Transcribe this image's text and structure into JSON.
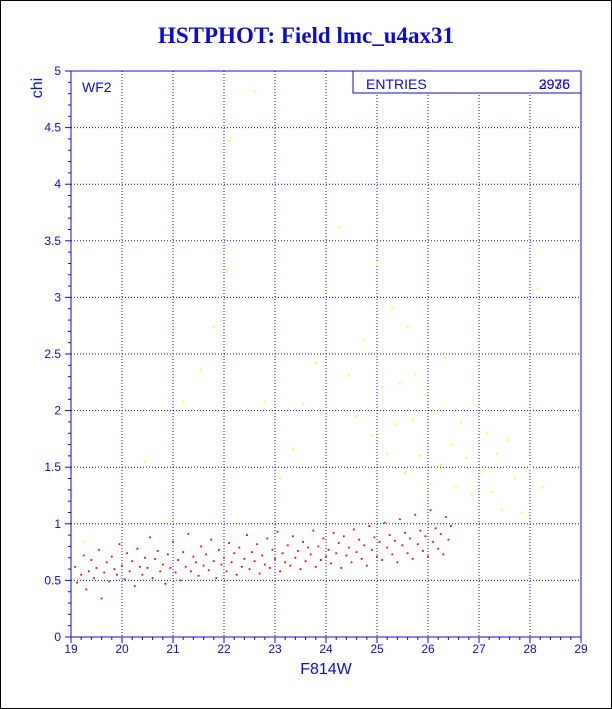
{
  "page": {
    "title": "HSTPHOT: Field lmc_u4ax31"
  },
  "colors": {
    "axis": "#0b0bd6",
    "title": "#0b0bd6",
    "grid": "#0b0bd6",
    "point_primary": "#ff0000",
    "point_secondary": "#ffff00"
  },
  "chart_data": {
    "type": "scatter",
    "title": "HSTPHOT: Field lmc_u4ax31",
    "subtitle": "",
    "xlabel": "F814W",
    "ylabel": "chi",
    "xlim": [
      19,
      29
    ],
    "ylim": [
      0,
      5
    ],
    "x_ticks": [
      "19",
      "20",
      "21",
      "22",
      "23",
      "24",
      "25",
      "26",
      "27",
      "28",
      "29"
    ],
    "y_ticks": [
      "0",
      "0.5",
      "1",
      "1.5",
      "2",
      "2.5",
      "3",
      "3.5",
      "4",
      "4.5",
      "5"
    ],
    "grid": true,
    "corner_label": "WF2",
    "stats_box": {
      "label": "ENTRIES",
      "value": "2976",
      "overlaid_value": "3935"
    },
    "series": [
      {
        "color": "#ff0000",
        "points": [
          [
            19.08,
            0.62
          ],
          [
            19.12,
            0.48
          ],
          [
            19.2,
            0.55
          ],
          [
            19.25,
            0.72
          ],
          [
            19.3,
            0.42
          ],
          [
            19.35,
            0.58
          ],
          [
            19.4,
            0.68
          ],
          [
            19.45,
            0.52
          ],
          [
            19.5,
            0.61
          ],
          [
            19.55,
            0.77
          ],
          [
            19.6,
            0.34
          ],
          [
            19.65,
            0.57
          ],
          [
            19.7,
            0.66
          ],
          [
            19.75,
            0.49
          ],
          [
            19.8,
            0.71
          ],
          [
            19.85,
            0.6
          ],
          [
            19.9,
            0.55
          ],
          [
            19.95,
            0.82
          ],
          [
            20.0,
            0.63
          ],
          [
            20.05,
            0.51
          ],
          [
            20.1,
            0.74
          ],
          [
            20.15,
            0.58
          ],
          [
            20.2,
            0.67
          ],
          [
            20.25,
            0.45
          ],
          [
            20.3,
            0.78
          ],
          [
            20.35,
            0.62
          ],
          [
            20.4,
            0.55
          ],
          [
            20.45,
            0.7
          ],
          [
            20.5,
            0.61
          ],
          [
            20.55,
            0.88
          ],
          [
            20.6,
            0.52
          ],
          [
            20.65,
            0.69
          ],
          [
            20.7,
            0.76
          ],
          [
            20.75,
            0.58
          ],
          [
            20.8,
            0.64
          ],
          [
            20.85,
            0.47
          ],
          [
            20.9,
            0.73
          ],
          [
            20.95,
            0.61
          ],
          [
            21.0,
            0.84
          ],
          [
            21.05,
            0.57
          ],
          [
            21.1,
            0.68
          ],
          [
            21.15,
            0.5
          ],
          [
            21.2,
            0.75
          ],
          [
            21.25,
            0.62
          ],
          [
            21.3,
            0.91
          ],
          [
            21.35,
            0.58
          ],
          [
            21.4,
            0.71
          ],
          [
            21.45,
            0.66
          ],
          [
            21.5,
            0.54
          ],
          [
            21.55,
            0.8
          ],
          [
            21.6,
            0.63
          ],
          [
            21.65,
            0.73
          ],
          [
            21.7,
            0.59
          ],
          [
            21.75,
            0.86
          ],
          [
            21.8,
            0.67
          ],
          [
            21.85,
            0.52
          ],
          [
            21.9,
            0.77
          ],
          [
            21.95,
            0.64
          ],
          [
            22.0,
            0.7
          ],
          [
            22.05,
            0.58
          ],
          [
            22.1,
            0.83
          ],
          [
            22.15,
            0.66
          ],
          [
            22.2,
            0.74
          ],
          [
            22.25,
            0.55
          ],
          [
            22.3,
            0.79
          ],
          [
            22.35,
            0.62
          ],
          [
            22.4,
            0.69
          ],
          [
            22.45,
            0.9
          ],
          [
            22.5,
            0.6
          ],
          [
            22.55,
            0.75
          ],
          [
            22.6,
            0.67
          ],
          [
            22.65,
            0.82
          ],
          [
            22.7,
            0.56
          ],
          [
            22.75,
            0.72
          ],
          [
            22.8,
            0.64
          ],
          [
            22.85,
            0.87
          ],
          [
            22.9,
            0.61
          ],
          [
            22.95,
            0.77
          ],
          [
            23.0,
            0.69
          ],
          [
            23.05,
            0.93
          ],
          [
            23.1,
            0.58
          ],
          [
            23.15,
            0.74
          ],
          [
            23.2,
            0.66
          ],
          [
            23.25,
            0.81
          ],
          [
            23.3,
            0.63
          ],
          [
            23.35,
            0.89
          ],
          [
            23.4,
            0.7
          ],
          [
            23.45,
            0.76
          ],
          [
            23.5,
            0.6
          ],
          [
            23.55,
            0.84
          ],
          [
            23.6,
            0.67
          ],
          [
            23.65,
            0.79
          ],
          [
            23.7,
            0.73
          ],
          [
            23.75,
            0.94
          ],
          [
            23.8,
            0.62
          ],
          [
            23.85,
            0.8
          ],
          [
            23.9,
            0.68
          ],
          [
            23.95,
            0.87
          ],
          [
            24.0,
            0.71
          ],
          [
            24.05,
            0.77
          ],
          [
            24.1,
            0.65
          ],
          [
            24.15,
            0.92
          ],
          [
            24.2,
            0.74
          ],
          [
            24.25,
            0.83
          ],
          [
            24.3,
            0.61
          ],
          [
            24.35,
            0.89
          ],
          [
            24.4,
            0.72
          ],
          [
            24.45,
            0.79
          ],
          [
            24.5,
            0.66
          ],
          [
            24.55,
            0.95
          ],
          [
            24.6,
            0.75
          ],
          [
            24.65,
            0.86
          ],
          [
            24.7,
            0.69
          ],
          [
            24.75,
            0.81
          ],
          [
            24.8,
            0.63
          ],
          [
            24.85,
            0.98
          ],
          [
            24.9,
            0.77
          ],
          [
            24.95,
            0.88
          ],
          [
            25.0,
            0.71
          ],
          [
            25.05,
            0.84
          ],
          [
            25.1,
            0.68
          ],
          [
            25.15,
            1.01
          ],
          [
            25.2,
            0.79
          ],
          [
            25.25,
            0.9
          ],
          [
            25.3,
            0.73
          ],
          [
            25.35,
            0.85
          ],
          [
            25.4,
            0.66
          ],
          [
            25.45,
            1.04
          ],
          [
            25.5,
            0.81
          ],
          [
            25.55,
            0.92
          ],
          [
            25.6,
            0.74
          ],
          [
            25.65,
            0.87
          ],
          [
            25.7,
            0.69
          ],
          [
            25.75,
            1.08
          ],
          [
            25.8,
            0.82
          ],
          [
            25.85,
            0.94
          ],
          [
            25.9,
            0.76
          ],
          [
            25.95,
            0.89
          ],
          [
            26.0,
            0.71
          ],
          [
            26.05,
            1.12
          ],
          [
            26.1,
            0.84
          ],
          [
            26.15,
            0.96
          ],
          [
            26.2,
            0.78
          ],
          [
            26.25,
            0.91
          ],
          [
            26.3,
            0.73
          ],
          [
            26.35,
            1.06
          ],
          [
            26.4,
            0.86
          ],
          [
            26.45,
            0.98
          ]
        ]
      },
      {
        "color": "#ffff00",
        "points": [
          [
            19.25,
            0.84
          ],
          [
            20.45,
            1.55
          ],
          [
            20.95,
            1.02
          ],
          [
            21.2,
            2.08
          ],
          [
            21.55,
            2.36
          ],
          [
            21.8,
            2.74
          ],
          [
            22.05,
            3.24
          ],
          [
            22.1,
            4.38
          ],
          [
            22.6,
            4.82
          ],
          [
            22.8,
            2.08
          ],
          [
            23.1,
            1.4
          ],
          [
            23.35,
            1.66
          ],
          [
            23.55,
            2.06
          ],
          [
            23.8,
            2.42
          ],
          [
            24.0,
            3.05
          ],
          [
            24.25,
            3.62
          ],
          [
            24.45,
            2.31
          ],
          [
            24.6,
            1.95
          ],
          [
            24.75,
            2.62
          ],
          [
            24.9,
            1.78
          ],
          [
            25.0,
            3.3
          ],
          [
            25.1,
            2.21
          ],
          [
            25.2,
            1.62
          ],
          [
            25.3,
            2.9
          ],
          [
            25.35,
            1.88
          ],
          [
            25.45,
            2.24
          ],
          [
            25.55,
            1.45
          ],
          [
            25.6,
            2.74
          ],
          [
            25.7,
            1.92
          ],
          [
            25.75,
            2.32
          ],
          [
            25.85,
            1.6
          ],
          [
            25.95,
            2.14
          ],
          [
            26.05,
            1.35
          ],
          [
            26.15,
            1.98
          ],
          [
            26.25,
            1.52
          ],
          [
            26.35,
            2.46
          ],
          [
            26.45,
            1.7
          ],
          [
            26.55,
            1.32
          ],
          [
            26.65,
            1.9
          ],
          [
            26.75,
            1.58
          ],
          [
            26.85,
            1.26
          ],
          [
            26.95,
            2.04
          ],
          [
            27.05,
            1.46
          ],
          [
            27.15,
            1.8
          ],
          [
            27.25,
            1.28
          ],
          [
            27.35,
            1.62
          ],
          [
            27.45,
            1.12
          ],
          [
            27.55,
            1.74
          ],
          [
            27.7,
            1.4
          ],
          [
            27.85,
            1.1
          ],
          [
            28.0,
            1.5
          ],
          [
            28.15,
            3.08
          ],
          [
            28.25,
            1.32
          ]
        ]
      }
    ]
  }
}
